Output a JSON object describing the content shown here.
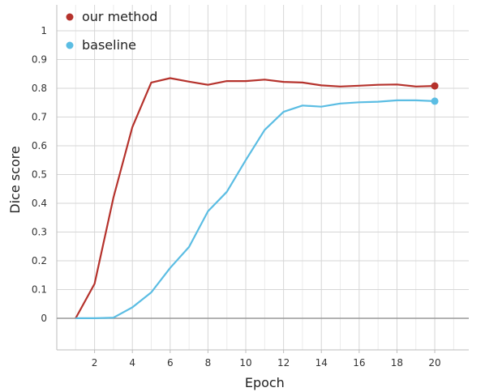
{
  "chart_data": {
    "type": "line",
    "xlabel": "Epoch",
    "ylabel": "Dice score",
    "xlim": [
      0,
      21.8
    ],
    "ylim": [
      -0.11,
      1.09
    ],
    "x_ticks": [
      2,
      4,
      6,
      8,
      10,
      12,
      14,
      16,
      18,
      20
    ],
    "y_ticks": [
      0,
      0.1,
      0.2,
      0.3,
      0.4,
      0.5,
      0.6,
      0.7,
      0.8,
      0.9,
      1
    ],
    "grid": true,
    "legend_position": "top-left",
    "x": [
      1,
      2,
      3,
      4,
      5,
      6,
      7,
      8,
      9,
      10,
      11,
      12,
      13,
      14,
      15,
      16,
      17,
      18,
      19,
      20
    ],
    "series": [
      {
        "name": "our method",
        "color": "#b5322c",
        "values": [
          0.0,
          0.12,
          0.42,
          0.665,
          0.82,
          0.835,
          0.823,
          0.812,
          0.825,
          0.825,
          0.83,
          0.822,
          0.82,
          0.81,
          0.806,
          0.809,
          0.812,
          0.813,
          0.806,
          0.808
        ]
      },
      {
        "name": "baseline",
        "color": "#5bbde3",
        "values": [
          0.0,
          0.0,
          0.002,
          0.038,
          0.09,
          0.175,
          0.248,
          0.372,
          0.44,
          0.55,
          0.655,
          0.718,
          0.74,
          0.736,
          0.747,
          0.751,
          0.753,
          0.758,
          0.758,
          0.755
        ]
      }
    ]
  }
}
